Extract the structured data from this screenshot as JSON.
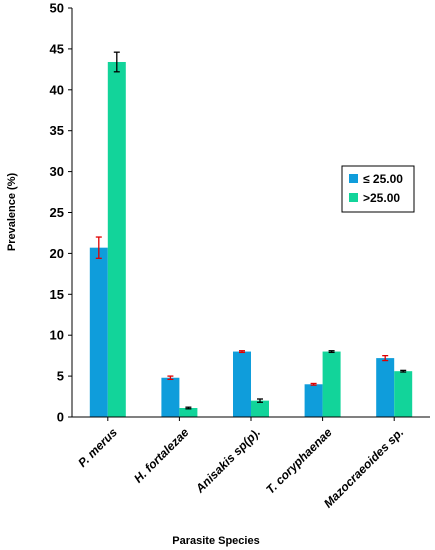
{
  "chart_data": {
    "type": "bar",
    "title": "",
    "xlabel": "Parasite Species",
    "ylabel": "Prevalence (%)",
    "ylim": [
      0,
      50
    ],
    "yticks": [
      0,
      5,
      10,
      15,
      20,
      25,
      30,
      35,
      40,
      45,
      50
    ],
    "grid": false,
    "legend_position": "right",
    "categories": [
      "P. merus",
      "H. fortalezae",
      "Anisakis sp(p).",
      "T. coryphaenae",
      "Mazocraeoides sp."
    ],
    "series": [
      {
        "name": "≤ 25.00",
        "color": "#0f9ddb",
        "error_color": "#e00000",
        "values": [
          20.7,
          4.8,
          8.0,
          4.0,
          7.2
        ],
        "errors": [
          1.3,
          0.2,
          0.1,
          0.1,
          0.3
        ]
      },
      {
        "name": ">25.00",
        "color": "#12d49a",
        "error_color": "#000000",
        "values": [
          43.4,
          1.1,
          2.0,
          8.0,
          5.6
        ],
        "errors": [
          1.2,
          0.1,
          0.2,
          0.1,
          0.1
        ]
      }
    ]
  }
}
